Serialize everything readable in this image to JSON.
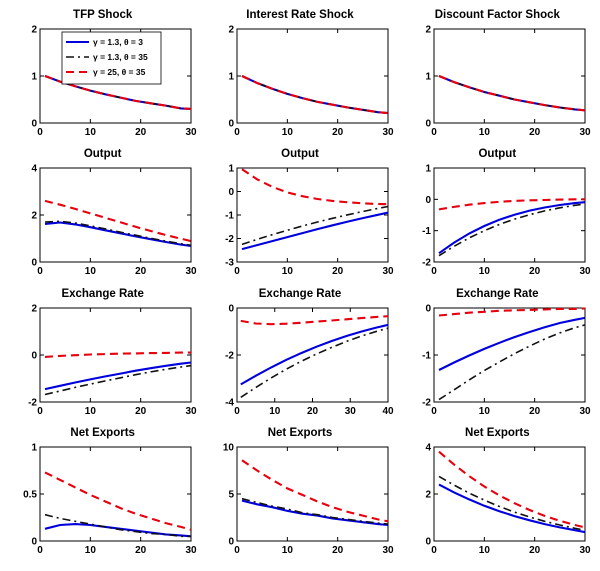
{
  "style": {
    "colors": {
      "blue": "#0000dd",
      "black": "#111111",
      "red": "#e8000d"
    },
    "background": "#ffffff"
  },
  "legend": {
    "entries": [
      {
        "label": "γ = 1.3,  θ = 3",
        "color": "blue",
        "style": "solid"
      },
      {
        "label": "γ = 1.3,  θ = 35",
        "color": "black",
        "style": "dashdot"
      },
      {
        "label": "γ = 25,  θ = 35",
        "color": "red",
        "style": "dashed"
      }
    ]
  },
  "chart_data": [
    {
      "type": "line",
      "title": "TFP Shock",
      "show_legend": true,
      "x": [
        1,
        4,
        7,
        10,
        13,
        16,
        19,
        22,
        25,
        28,
        30
      ],
      "xlim": [
        0,
        30
      ],
      "xticks": [
        0,
        10,
        20,
        30
      ],
      "ylim": [
        0,
        2
      ],
      "yticks": [
        0,
        1,
        2
      ],
      "series": [
        {
          "name": "gamma=1.3 theta=3",
          "color": "blue",
          "style": "solid",
          "values": [
            1.0,
            0.88,
            0.78,
            0.69,
            0.61,
            0.54,
            0.47,
            0.42,
            0.37,
            0.31,
            0.3
          ]
        },
        {
          "name": "gamma=1.3 theta=35",
          "color": "black",
          "style": "dashdot",
          "values": [
            1.0,
            0.88,
            0.78,
            0.69,
            0.61,
            0.54,
            0.47,
            0.42,
            0.37,
            0.31,
            0.3
          ]
        },
        {
          "name": "gamma=25 theta=35",
          "color": "red",
          "style": "dashed",
          "values": [
            1.0,
            0.88,
            0.78,
            0.69,
            0.61,
            0.54,
            0.47,
            0.42,
            0.37,
            0.31,
            0.3
          ]
        }
      ]
    },
    {
      "type": "line",
      "title": "Interest Rate Shock",
      "show_legend": false,
      "x": [
        1,
        4,
        7,
        10,
        13,
        16,
        19,
        22,
        25,
        28,
        30
      ],
      "xlim": [
        0,
        30
      ],
      "xticks": [
        0,
        10,
        20,
        30
      ],
      "ylim": [
        0,
        2
      ],
      "yticks": [
        0,
        1,
        2
      ],
      "series": [
        {
          "name": "gamma=1.3 theta=3",
          "color": "blue",
          "style": "solid",
          "values": [
            1.0,
            0.85,
            0.73,
            0.62,
            0.53,
            0.45,
            0.39,
            0.33,
            0.28,
            0.23,
            0.21
          ]
        },
        {
          "name": "gamma=1.3 theta=35",
          "color": "black",
          "style": "dashdot",
          "values": [
            1.0,
            0.85,
            0.73,
            0.62,
            0.53,
            0.45,
            0.39,
            0.33,
            0.28,
            0.23,
            0.21
          ]
        },
        {
          "name": "gamma=25 theta=35",
          "color": "red",
          "style": "dashed",
          "values": [
            1.0,
            0.85,
            0.73,
            0.62,
            0.53,
            0.45,
            0.39,
            0.33,
            0.28,
            0.23,
            0.21
          ]
        }
      ]
    },
    {
      "type": "line",
      "title": "Discount Factor Shock",
      "show_legend": false,
      "x": [
        1,
        4,
        7,
        10,
        13,
        16,
        19,
        22,
        25,
        28,
        30
      ],
      "xlim": [
        0,
        30
      ],
      "xticks": [
        0,
        10,
        20,
        30
      ],
      "ylim": [
        0,
        2
      ],
      "yticks": [
        0,
        1,
        2
      ],
      "series": [
        {
          "name": "gamma=1.3 theta=3",
          "color": "blue",
          "style": "solid",
          "values": [
            1.0,
            0.87,
            0.76,
            0.66,
            0.58,
            0.5,
            0.44,
            0.38,
            0.33,
            0.29,
            0.27
          ]
        },
        {
          "name": "gamma=1.3 theta=35",
          "color": "black",
          "style": "dashdot",
          "values": [
            1.0,
            0.87,
            0.76,
            0.66,
            0.58,
            0.5,
            0.44,
            0.38,
            0.33,
            0.29,
            0.27
          ]
        },
        {
          "name": "gamma=25 theta=35",
          "color": "red",
          "style": "dashed",
          "values": [
            1.0,
            0.87,
            0.76,
            0.66,
            0.58,
            0.5,
            0.44,
            0.38,
            0.33,
            0.29,
            0.27
          ]
        }
      ]
    },
    {
      "type": "line",
      "title": "Output",
      "show_legend": false,
      "x": [
        1,
        4,
        7,
        10,
        13,
        16,
        19,
        22,
        25,
        28,
        30
      ],
      "xlim": [
        0,
        30
      ],
      "xticks": [
        0,
        10,
        20,
        30
      ],
      "ylim": [
        0,
        4
      ],
      "yticks": [
        0,
        2,
        4
      ],
      "series": [
        {
          "name": "gamma=1.3 theta=3",
          "color": "blue",
          "style": "solid",
          "values": [
            1.62,
            1.68,
            1.6,
            1.48,
            1.35,
            1.22,
            1.09,
            0.97,
            0.85,
            0.74,
            0.68
          ]
        },
        {
          "name": "gamma=1.3 theta=35",
          "color": "black",
          "style": "dashdot",
          "values": [
            1.7,
            1.73,
            1.66,
            1.54,
            1.41,
            1.27,
            1.14,
            1.01,
            0.89,
            0.78,
            0.71
          ]
        },
        {
          "name": "gamma=25 theta=35",
          "color": "red",
          "style": "dashed",
          "values": [
            2.6,
            2.44,
            2.26,
            2.07,
            1.88,
            1.69,
            1.5,
            1.32,
            1.15,
            0.99,
            0.89
          ]
        }
      ]
    },
    {
      "type": "line",
      "title": "Output",
      "show_legend": false,
      "x": [
        1,
        4,
        7,
        10,
        13,
        16,
        19,
        22,
        25,
        28,
        30
      ],
      "xlim": [
        0,
        30
      ],
      "xticks": [
        0,
        10,
        20,
        30
      ],
      "ylim": [
        -3,
        1
      ],
      "yticks": [
        -3,
        -2,
        -1,
        0,
        1
      ],
      "series": [
        {
          "name": "gamma=1.3 theta=3",
          "color": "blue",
          "style": "solid",
          "values": [
            -2.45,
            -2.28,
            -2.11,
            -1.94,
            -1.77,
            -1.6,
            -1.44,
            -1.28,
            -1.13,
            -0.99,
            -0.9
          ]
        },
        {
          "name": "gamma=1.3 theta=35",
          "color": "black",
          "style": "dashdot",
          "values": [
            -2.25,
            -2.04,
            -1.84,
            -1.65,
            -1.47,
            -1.3,
            -1.14,
            -0.99,
            -0.85,
            -0.72,
            -0.64
          ]
        },
        {
          "name": "gamma=25 theta=35",
          "color": "red",
          "style": "dashed",
          "values": [
            0.95,
            0.52,
            0.2,
            -0.04,
            -0.2,
            -0.32,
            -0.4,
            -0.46,
            -0.5,
            -0.53,
            -0.54
          ]
        }
      ]
    },
    {
      "type": "line",
      "title": "Output",
      "show_legend": false,
      "x": [
        1,
        4,
        7,
        10,
        13,
        16,
        19,
        22,
        25,
        28,
        30
      ],
      "xlim": [
        0,
        30
      ],
      "xticks": [
        0,
        10,
        20,
        30
      ],
      "ylim": [
        -2,
        1
      ],
      "yticks": [
        -2,
        -1,
        0,
        1
      ],
      "series": [
        {
          "name": "gamma=1.3 theta=3",
          "color": "blue",
          "style": "solid",
          "values": [
            -1.72,
            -1.38,
            -1.09,
            -0.85,
            -0.65,
            -0.49,
            -0.36,
            -0.26,
            -0.18,
            -0.12,
            -0.09
          ]
        },
        {
          "name": "gamma=1.3 theta=35",
          "color": "black",
          "style": "dashdot",
          "values": [
            -1.8,
            -1.5,
            -1.23,
            -1.0,
            -0.8,
            -0.63,
            -0.49,
            -0.37,
            -0.27,
            -0.19,
            -0.15
          ]
        },
        {
          "name": "gamma=25 theta=35",
          "color": "red",
          "style": "dashed",
          "values": [
            -0.32,
            -0.24,
            -0.17,
            -0.12,
            -0.08,
            -0.05,
            -0.03,
            -0.02,
            -0.01,
            0.0,
            0.0
          ]
        }
      ]
    },
    {
      "type": "line",
      "title": "Exchange Rate",
      "show_legend": false,
      "x": [
        1,
        4,
        7,
        10,
        13,
        16,
        19,
        22,
        25,
        28,
        30
      ],
      "xlim": [
        0,
        30
      ],
      "xticks": [
        0,
        10,
        20,
        30
      ],
      "ylim": [
        -2,
        2
      ],
      "yticks": [
        -2,
        0,
        2
      ],
      "series": [
        {
          "name": "gamma=1.3 theta=3",
          "color": "blue",
          "style": "solid",
          "values": [
            -1.45,
            -1.31,
            -1.17,
            -1.04,
            -0.91,
            -0.79,
            -0.67,
            -0.56,
            -0.46,
            -0.37,
            -0.32
          ]
        },
        {
          "name": "gamma=1.3 theta=35",
          "color": "black",
          "style": "dashdot",
          "values": [
            -1.68,
            -1.53,
            -1.38,
            -1.24,
            -1.1,
            -0.97,
            -0.84,
            -0.72,
            -0.61,
            -0.51,
            -0.45
          ]
        },
        {
          "name": "gamma=25 theta=35",
          "color": "red",
          "style": "dashed",
          "values": [
            -0.08,
            -0.04,
            -0.01,
            0.02,
            0.04,
            0.06,
            0.07,
            0.08,
            0.09,
            0.1,
            0.1
          ]
        }
      ]
    },
    {
      "type": "line",
      "title": "Exchange Rate",
      "show_legend": false,
      "x": [
        1,
        5,
        9,
        13,
        17,
        21,
        25,
        29,
        33,
        37,
        40
      ],
      "xlim": [
        0,
        40
      ],
      "xticks": [
        0,
        10,
        20,
        30,
        40
      ],
      "ylim": [
        -4,
        0
      ],
      "yticks": [
        -4,
        -2,
        0
      ],
      "series": [
        {
          "name": "gamma=1.3 theta=3",
          "color": "blue",
          "style": "solid",
          "values": [
            -3.25,
            -2.88,
            -2.53,
            -2.21,
            -1.92,
            -1.65,
            -1.41,
            -1.19,
            -1.0,
            -0.83,
            -0.72
          ]
        },
        {
          "name": "gamma=1.3 theta=35",
          "color": "black",
          "style": "dashdot",
          "values": [
            -3.8,
            -3.38,
            -2.98,
            -2.61,
            -2.27,
            -1.96,
            -1.68,
            -1.42,
            -1.19,
            -0.99,
            -0.86
          ]
        },
        {
          "name": "gamma=25 theta=35",
          "color": "red",
          "style": "dashed",
          "values": [
            -0.55,
            -0.66,
            -0.69,
            -0.67,
            -0.63,
            -0.58,
            -0.53,
            -0.48,
            -0.43,
            -0.38,
            -0.35
          ]
        }
      ]
    },
    {
      "type": "line",
      "title": "Exchange Rate",
      "show_legend": false,
      "x": [
        1,
        4,
        7,
        10,
        13,
        16,
        19,
        22,
        25,
        28,
        30
      ],
      "xlim": [
        0,
        30
      ],
      "xticks": [
        0,
        10,
        20,
        30
      ],
      "ylim": [
        -2,
        0
      ],
      "yticks": [
        -2,
        -1,
        0
      ],
      "series": [
        {
          "name": "gamma=1.3 theta=3",
          "color": "blue",
          "style": "solid",
          "values": [
            -1.32,
            -1.16,
            -1.01,
            -0.87,
            -0.74,
            -0.62,
            -0.51,
            -0.41,
            -0.32,
            -0.25,
            -0.21
          ]
        },
        {
          "name": "gamma=1.3 theta=35",
          "color": "black",
          "style": "dashdot",
          "values": [
            -1.95,
            -1.74,
            -1.53,
            -1.33,
            -1.15,
            -0.97,
            -0.81,
            -0.66,
            -0.53,
            -0.42,
            -0.36
          ]
        },
        {
          "name": "gamma=25 theta=35",
          "color": "red",
          "style": "dashed",
          "values": [
            -0.16,
            -0.13,
            -0.1,
            -0.08,
            -0.06,
            -0.05,
            -0.04,
            -0.03,
            -0.02,
            -0.02,
            -0.01
          ]
        }
      ]
    },
    {
      "type": "line",
      "title": "Net Exports",
      "show_legend": false,
      "x": [
        1,
        4,
        7,
        10,
        13,
        16,
        19,
        22,
        25,
        28,
        30
      ],
      "xlim": [
        0,
        30
      ],
      "xticks": [
        0,
        10,
        20,
        30
      ],
      "ylim": [
        0,
        1
      ],
      "yticks": [
        0,
        0.5,
        1
      ],
      "series": [
        {
          "name": "gamma=1.3 theta=3",
          "color": "blue",
          "style": "solid",
          "values": [
            0.13,
            0.17,
            0.18,
            0.17,
            0.15,
            0.13,
            0.11,
            0.09,
            0.07,
            0.06,
            0.05
          ]
        },
        {
          "name": "gamma=1.3 theta=35",
          "color": "black",
          "style": "dashdot",
          "values": [
            0.28,
            0.24,
            0.21,
            0.18,
            0.15,
            0.12,
            0.1,
            0.08,
            0.07,
            0.05,
            0.05
          ]
        },
        {
          "name": "gamma=25 theta=35",
          "color": "red",
          "style": "dashed",
          "values": [
            0.73,
            0.65,
            0.57,
            0.49,
            0.42,
            0.35,
            0.29,
            0.24,
            0.19,
            0.15,
            0.12
          ]
        }
      ]
    },
    {
      "type": "line",
      "title": "Net Exports",
      "show_legend": false,
      "x": [
        1,
        4,
        7,
        10,
        13,
        16,
        19,
        22,
        25,
        28,
        30
      ],
      "xlim": [
        0,
        30
      ],
      "xticks": [
        0,
        10,
        20,
        30
      ],
      "ylim": [
        0,
        10
      ],
      "yticks": [
        0,
        5,
        10
      ],
      "series": [
        {
          "name": "gamma=1.3 theta=3",
          "color": "blue",
          "style": "solid",
          "values": [
            4.3,
            3.9,
            3.6,
            3.2,
            2.9,
            2.7,
            2.4,
            2.2,
            2.0,
            1.8,
            1.7
          ]
        },
        {
          "name": "gamma=1.3 theta=35",
          "color": "black",
          "style": "dashdot",
          "values": [
            4.5,
            4.1,
            3.7,
            3.4,
            3.0,
            2.8,
            2.5,
            2.3,
            2.1,
            1.9,
            1.8
          ]
        },
        {
          "name": "gamma=25 theta=35",
          "color": "red",
          "style": "dashed",
          "values": [
            8.6,
            7.5,
            6.5,
            5.6,
            4.9,
            4.2,
            3.6,
            3.1,
            2.7,
            2.3,
            2.1
          ]
        }
      ]
    },
    {
      "type": "line",
      "title": "Net Exports",
      "show_legend": false,
      "x": [
        1,
        4,
        7,
        10,
        13,
        16,
        19,
        22,
        25,
        28,
        30
      ],
      "xlim": [
        0,
        30
      ],
      "xticks": [
        0,
        10,
        20,
        30
      ],
      "ylim": [
        0,
        4
      ],
      "yticks": [
        0,
        2,
        4
      ],
      "series": [
        {
          "name": "gamma=1.3 theta=3",
          "color": "blue",
          "style": "solid",
          "values": [
            2.4,
            2.07,
            1.77,
            1.5,
            1.27,
            1.06,
            0.88,
            0.72,
            0.58,
            0.46,
            0.38
          ]
        },
        {
          "name": "gamma=1.3 theta=35",
          "color": "black",
          "style": "dashdot",
          "values": [
            2.75,
            2.38,
            2.04,
            1.74,
            1.47,
            1.23,
            1.02,
            0.84,
            0.68,
            0.54,
            0.46
          ]
        },
        {
          "name": "gamma=25 theta=35",
          "color": "red",
          "style": "dashed",
          "values": [
            3.8,
            3.25,
            2.76,
            2.32,
            1.94,
            1.61,
            1.32,
            1.07,
            0.86,
            0.68,
            0.58
          ]
        }
      ]
    }
  ]
}
